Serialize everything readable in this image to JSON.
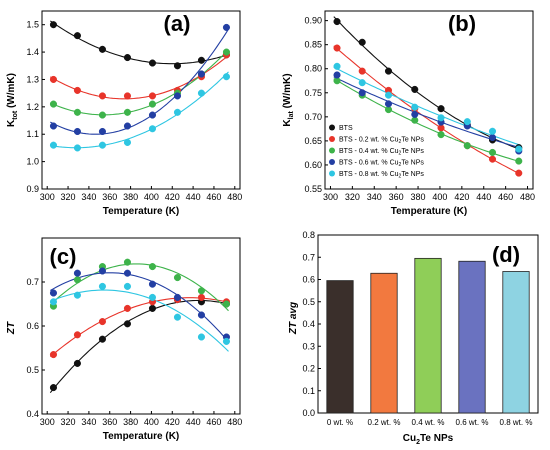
{
  "chart_data": [
    {
      "panel": "(a)",
      "type": "scatter",
      "xlabel": "Temperature (K)",
      "ylabel": "K_tot (W/mK)",
      "ylabel_main": "K",
      "ylabel_sub": "tot",
      "ylabel_unit": " (W/mK)",
      "xlim": [
        295,
        485
      ],
      "ylim": [
        0.9,
        1.55
      ],
      "xticks": [
        "300",
        "320",
        "340",
        "360",
        "380",
        "400",
        "420",
        "440",
        "460",
        "480"
      ],
      "xtick_values": [
        300,
        320,
        340,
        360,
        380,
        400,
        420,
        440,
        460,
        480
      ],
      "yticks": [
        "0.9",
        "1.0",
        "1.1",
        "1.2",
        "1.3",
        "1.4",
        "1.5"
      ],
      "ytick_values": [
        0.9,
        1.0,
        1.1,
        1.2,
        1.3,
        1.4,
        1.5
      ],
      "x": [
        306,
        329,
        353,
        377,
        401,
        425,
        448,
        472
      ],
      "series": [
        {
          "name": "BTS",
          "color": "#111111",
          "values": [
            1.5,
            1.46,
            1.41,
            1.38,
            1.36,
            1.35,
            1.37,
            1.39
          ]
        },
        {
          "name": "BTS - 0.2 wt. % Cu2Te NPs",
          "color": "#e8342a",
          "values": [
            1.3,
            1.26,
            1.24,
            1.24,
            1.24,
            1.26,
            1.31,
            1.39
          ]
        },
        {
          "name": "BTS - 0.4 wt. % Cu2Te NPs",
          "color": "#3db34a",
          "values": [
            1.21,
            1.18,
            1.17,
            1.18,
            1.21,
            1.25,
            1.32,
            1.4
          ]
        },
        {
          "name": "BTS - 0.6 wt. % Cu2Te NPs",
          "color": "#233fa3",
          "values": [
            1.13,
            1.11,
            1.11,
            1.13,
            1.17,
            1.24,
            1.32,
            1.49
          ]
        },
        {
          "name": "BTS - 0.8 wt. % Cu2Te NPs",
          "color": "#2ec6e2",
          "values": [
            1.06,
            1.05,
            1.06,
            1.07,
            1.12,
            1.18,
            1.25,
            1.31
          ]
        }
      ]
    },
    {
      "panel": "(b)",
      "type": "scatter",
      "xlabel": "Temperature (K)",
      "ylabel": "K_lat (W/mK)",
      "ylabel_main": "K",
      "ylabel_sub": "lat",
      "ylabel_unit": " (W/mK)",
      "xlim": [
        295,
        485
      ],
      "ylim": [
        0.55,
        0.92
      ],
      "xticks": [
        "300",
        "320",
        "340",
        "360",
        "380",
        "400",
        "420",
        "440",
        "460",
        "480"
      ],
      "xtick_values": [
        300,
        320,
        340,
        360,
        380,
        400,
        420,
        440,
        460,
        480
      ],
      "yticks": [
        "0.55",
        "0.60",
        "0.65",
        "0.70",
        "0.75",
        "0.80",
        "0.85",
        "0.90"
      ],
      "ytick_values": [
        0.55,
        0.6,
        0.65,
        0.7,
        0.75,
        0.8,
        0.85,
        0.9
      ],
      "x": [
        306,
        329,
        353,
        377,
        401,
        425,
        448,
        472
      ],
      "series": [
        {
          "name": "BTS",
          "color": "#111111",
          "values": [
            0.898,
            0.855,
            0.795,
            0.757,
            0.717,
            0.683,
            0.652,
            0.636
          ]
        },
        {
          "name": "BTS - 0.2 wt. % Cu2Te NPs",
          "color": "#e8342a",
          "values": [
            0.843,
            0.795,
            0.755,
            0.717,
            0.677,
            0.64,
            0.612,
            0.583
          ]
        },
        {
          "name": "BTS - 0.4 wt. % Cu2Te NPs",
          "color": "#3db34a",
          "values": [
            0.775,
            0.745,
            0.715,
            0.693,
            0.663,
            0.64,
            0.626,
            0.608
          ]
        },
        {
          "name": "BTS - 0.6 wt. % Cu2Te NPs",
          "color": "#233fa3",
          "values": [
            0.787,
            0.75,
            0.727,
            0.705,
            0.689,
            0.681,
            0.657,
            0.629
          ]
        },
        {
          "name": "BTS - 0.8 wt. % Cu2Te NPs",
          "color": "#2ec6e2",
          "values": [
            0.805,
            0.771,
            0.745,
            0.72,
            0.698,
            0.69,
            0.67,
            0.633
          ]
        }
      ],
      "legend": {
        "position": "bottom-left",
        "entries": [
          {
            "pre": "BTS",
            "sub": "",
            "post": ""
          },
          {
            "pre": "BTS - 0.2 wt. % Cu",
            "sub": "2",
            "post": "Te NPs"
          },
          {
            "pre": "BTS - 0.4 wt. % Cu",
            "sub": "2",
            "post": "Te NPs"
          },
          {
            "pre": "BTS - 0.6 wt. % Cu",
            "sub": "2",
            "post": "Te NPs"
          },
          {
            "pre": "BTS - 0.8 wt. % Cu",
            "sub": "2",
            "post": "Te NPs"
          }
        ]
      }
    },
    {
      "panel": "(c)",
      "type": "scatter",
      "xlabel": "Temperature (K)",
      "ylabel": "ZT",
      "xlim": [
        295,
        485
      ],
      "ylim": [
        0.4,
        0.8
      ],
      "xticks": [
        "300",
        "320",
        "340",
        "360",
        "380",
        "400",
        "420",
        "440",
        "460",
        "480"
      ],
      "xtick_values": [
        300,
        320,
        340,
        360,
        380,
        400,
        420,
        440,
        460,
        480
      ],
      "yticks": [
        "0.4",
        "0.5",
        "0.6",
        "0.7"
      ],
      "ytick_values": [
        0.4,
        0.5,
        0.6,
        0.7
      ],
      "x": [
        306,
        329,
        353,
        377,
        401,
        425,
        448,
        472
      ],
      "series": [
        {
          "name": "BTS",
          "color": "#111111",
          "values": [
            0.46,
            0.515,
            0.57,
            0.605,
            0.64,
            0.66,
            0.655,
            0.65
          ]
        },
        {
          "name": "BTS - 0.2 wt. % Cu2Te NPs",
          "color": "#e8342a",
          "values": [
            0.535,
            0.58,
            0.61,
            0.64,
            0.655,
            0.66,
            0.665,
            0.655
          ]
        },
        {
          "name": "BTS - 0.4 wt. % Cu2Te NPs",
          "color": "#3db34a",
          "values": [
            0.645,
            0.705,
            0.735,
            0.745,
            0.735,
            0.71,
            0.68,
            0.65
          ]
        },
        {
          "name": "BTS - 0.6 wt. % Cu2Te NPs",
          "color": "#233fa3",
          "values": [
            0.675,
            0.72,
            0.725,
            0.72,
            0.695,
            0.665,
            0.625,
            0.575
          ]
        },
        {
          "name": "BTS - 0.8 wt. % Cu2Te NPs",
          "color": "#2ec6e2",
          "values": [
            0.655,
            0.67,
            0.69,
            0.69,
            0.665,
            0.62,
            0.575,
            0.565
          ]
        }
      ]
    },
    {
      "panel": "(d)",
      "type": "bar",
      "xlabel": "Cu2Te NPs",
      "xlabel_pre": "Cu",
      "xlabel_sub": "2",
      "xlabel_post": "Te NPs",
      "ylabel": "ZT avg",
      "ylim": [
        0.0,
        0.8
      ],
      "yticks": [
        "0.0",
        "0.1",
        "0.2",
        "0.3",
        "0.4",
        "0.5",
        "0.6",
        "0.7",
        "0.8"
      ],
      "ytick_values": [
        0.0,
        0.1,
        0.2,
        0.3,
        0.4,
        0.5,
        0.6,
        0.7,
        0.8
      ],
      "categories": [
        "0 wt. %",
        "0.2 wt. %",
        "0.4 wt. %",
        "0.6 wt. %",
        "0.8 wt. %"
      ],
      "values": [
        0.595,
        0.628,
        0.695,
        0.682,
        0.636
      ],
      "colors": [
        "#3a2f2b",
        "#f2793f",
        "#8fce58",
        "#6a72c0",
        "#8ed3e2"
      ]
    }
  ]
}
